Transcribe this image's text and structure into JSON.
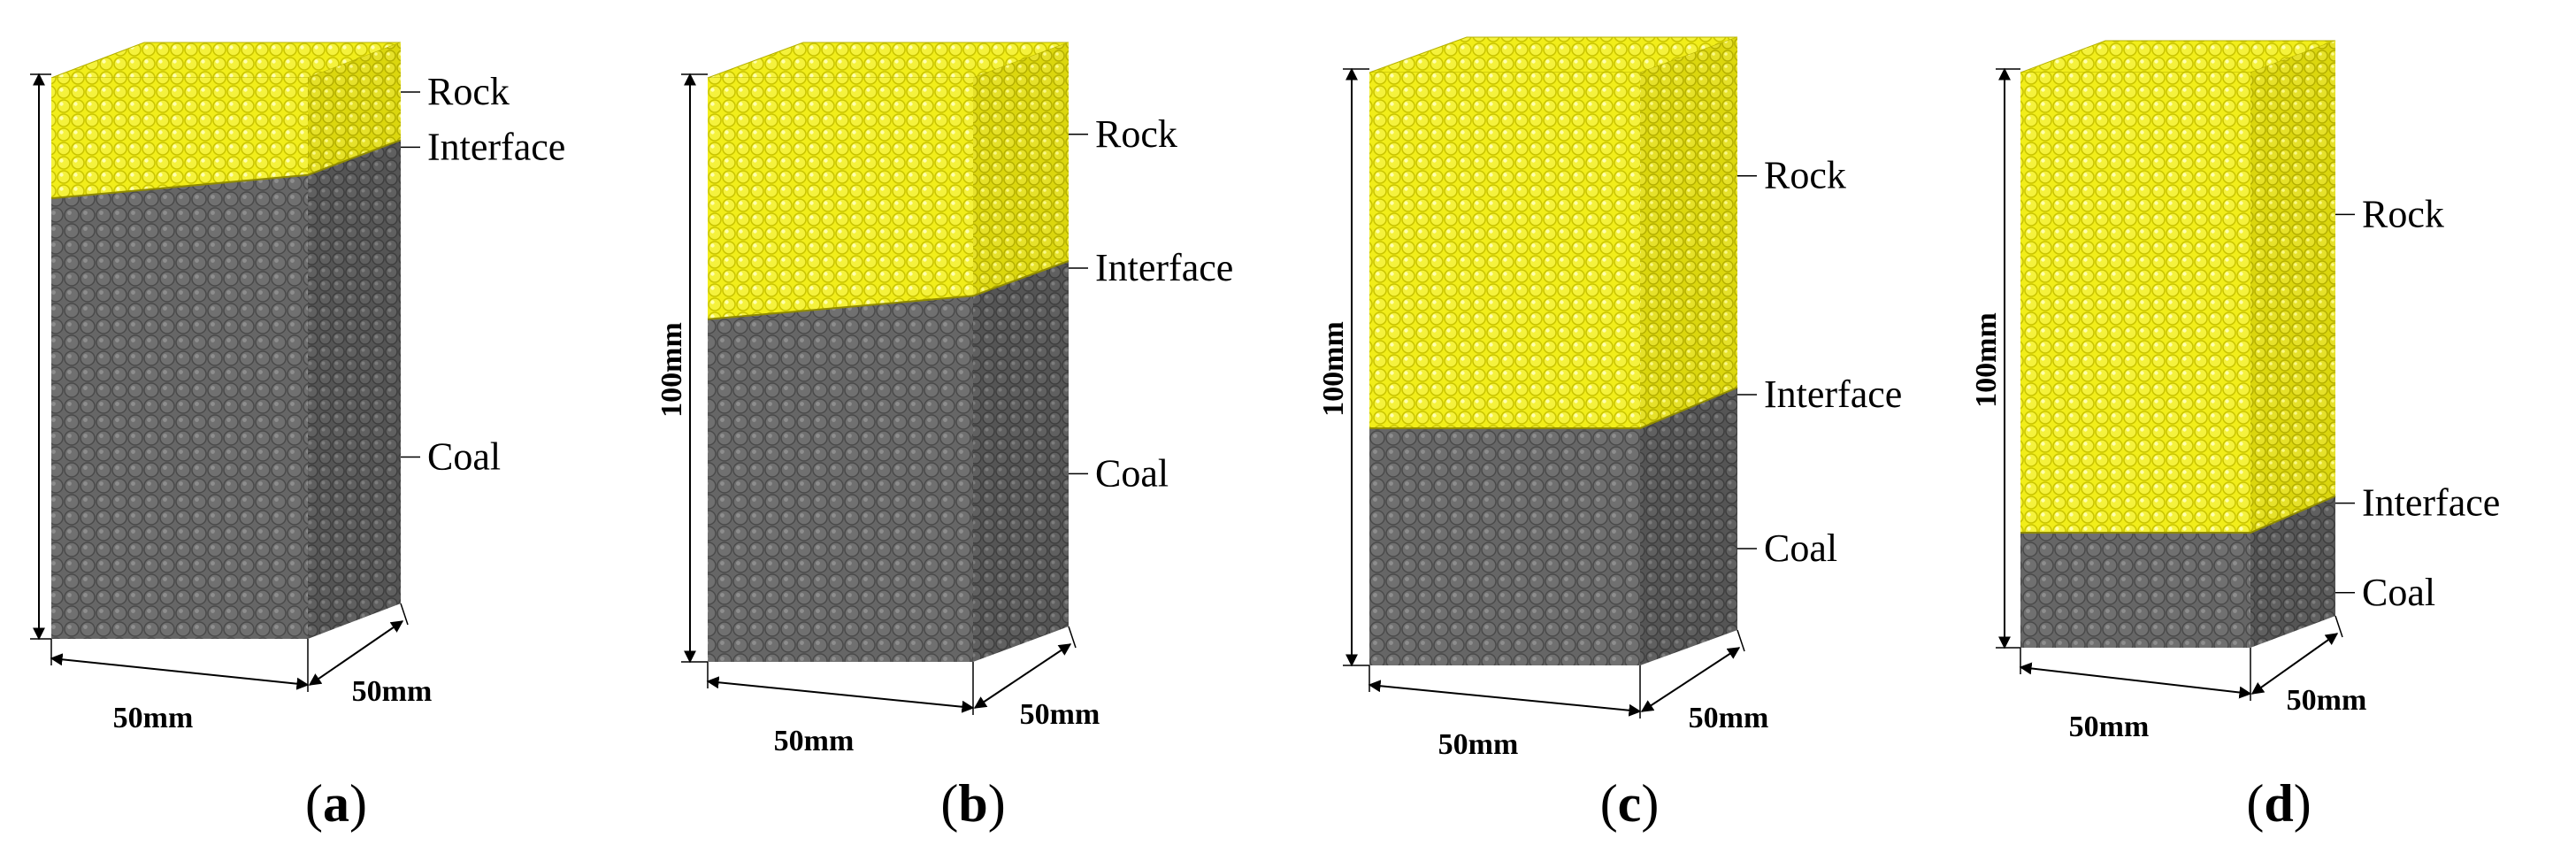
{
  "panels": [
    {
      "id": "a",
      "caption_open": "(",
      "caption_letter": "a",
      "caption_close": ")",
      "labels": {
        "rock": "Rock",
        "interface": "Interface",
        "coal": "Coal"
      },
      "dims": {
        "height": "",
        "width": "50mm",
        "depth": "50mm"
      },
      "interface_height_fraction": 0.82,
      "interface_tilt": true
    },
    {
      "id": "b",
      "caption_open": "(",
      "caption_letter": "b",
      "caption_close": ")",
      "labels": {
        "rock": "Rock",
        "interface": "Interface",
        "coal": "Coal"
      },
      "dims": {
        "height": "100mm",
        "width": "50mm",
        "depth": "50mm"
      },
      "interface_height_fraction": 0.62,
      "interface_tilt": true
    },
    {
      "id": "c",
      "caption_open": "(",
      "caption_letter": "c",
      "caption_close": ")",
      "labels": {
        "rock": "Rock",
        "interface": "Interface",
        "coal": "Coal"
      },
      "dims": {
        "height": "100mm",
        "width": "50mm",
        "depth": "50mm"
      },
      "interface_height_fraction": 0.4,
      "interface_tilt": false
    },
    {
      "id": "d",
      "caption_open": "(",
      "caption_letter": "d",
      "caption_close": ")",
      "labels": {
        "rock": "Rock",
        "interface": "Interface",
        "coal": "Coal"
      },
      "dims": {
        "height": "100mm",
        "width": "50mm",
        "depth": "50mm"
      },
      "interface_height_fraction": 0.2,
      "interface_tilt": false
    }
  ],
  "colors": {
    "rock": "#f2ee1a",
    "rock_side": "#dcd70e",
    "rock_top": "#f7f35a",
    "coal": "#6e6e6e",
    "coal_side": "#5a5a5a",
    "rock_particle": "#c9c400",
    "coal_particle": "#4a4a4a"
  }
}
